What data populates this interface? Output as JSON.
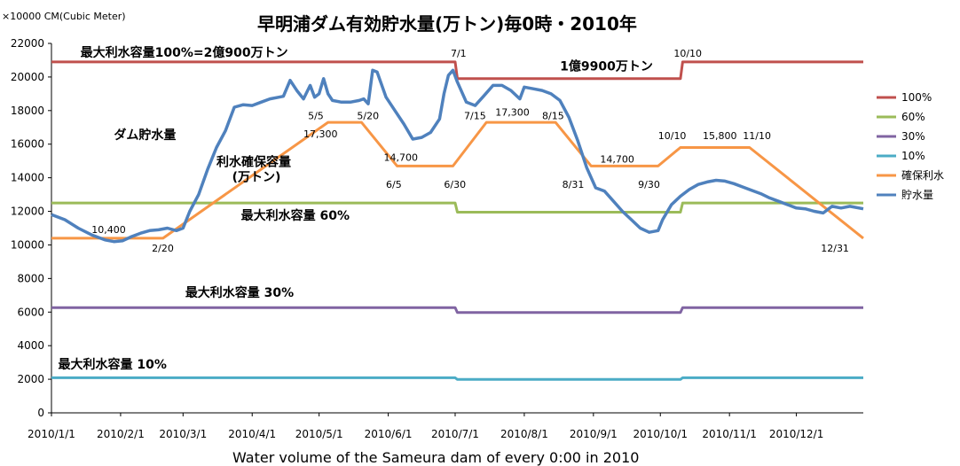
{
  "chart_data": {
    "type": "line",
    "title": "早明浦ダム有効貯水量(万トン)毎0時・2010年",
    "unit_label": "×10000 CM(Cubic Meter)",
    "xlabel": "Water volume of the Sameura dam of every 0:00 in 2010",
    "ylim": [
      0,
      22000
    ],
    "yticks": [
      "0",
      "2000",
      "4000",
      "6000",
      "8000",
      "10000",
      "12000",
      "14000",
      "16000",
      "18000",
      "20000",
      "22000"
    ],
    "xlim": [
      0,
      364
    ],
    "xticks": [
      {
        "label": "2010/1/1",
        "x": 0
      },
      {
        "label": "2010/2/1",
        "x": 31
      },
      {
        "label": "2010/3/1",
        "x": 59
      },
      {
        "label": "2010/4/1",
        "x": 90
      },
      {
        "label": "2010/5/1",
        "x": 120
      },
      {
        "label": "2010/6/1",
        "x": 151
      },
      {
        "label": "2010/7/1",
        "x": 181
      },
      {
        "label": "2010/8/1",
        "x": 212
      },
      {
        "label": "2010/9/1",
        "x": 243
      },
      {
        "label": "2010/10/1",
        "x": 273
      },
      {
        "label": "2010/11/1",
        "x": 304
      },
      {
        "label": "2010/12/1",
        "x": 334
      }
    ],
    "grid": false,
    "legend": "right",
    "series": [
      {
        "name": "100%",
        "color": "#C0504D",
        "points": [
          [
            0,
            20900
          ],
          [
            181,
            20900
          ],
          [
            182,
            19900
          ],
          [
            282,
            19900
          ],
          [
            283,
            20900
          ],
          [
            364,
            20900
          ]
        ]
      },
      {
        "name": "60%",
        "color": "#9BBB59",
        "points": [
          [
            0,
            12500
          ],
          [
            181,
            12500
          ],
          [
            182,
            11950
          ],
          [
            282,
            11950
          ],
          [
            283,
            12500
          ],
          [
            364,
            12500
          ]
        ]
      },
      {
        "name": "30%",
        "color": "#8064A2",
        "points": [
          [
            0,
            6270
          ],
          [
            181,
            6270
          ],
          [
            182,
            5970
          ],
          [
            282,
            5970
          ],
          [
            283,
            6270
          ],
          [
            364,
            6270
          ]
        ]
      },
      {
        "name": "10%",
        "color": "#4BACC6",
        "points": [
          [
            0,
            2090
          ],
          [
            181,
            2090
          ],
          [
            182,
            1990
          ],
          [
            282,
            1990
          ],
          [
            283,
            2090
          ],
          [
            364,
            2090
          ]
        ]
      },
      {
        "name": "確保利水",
        "color": "#F79646",
        "points": [
          [
            0,
            10400
          ],
          [
            50,
            10400
          ],
          [
            124,
            17300
          ],
          [
            139,
            17300
          ],
          [
            155,
            14700
          ],
          [
            180,
            14700
          ],
          [
            195,
            17300
          ],
          [
            226,
            17300
          ],
          [
            242,
            14700
          ],
          [
            272,
            14700
          ],
          [
            282,
            15800
          ],
          [
            313,
            15800
          ],
          [
            364,
            10400
          ]
        ]
      },
      {
        "name": "貯水量",
        "color": "#4F81BD",
        "points": [
          [
            0,
            11800
          ],
          [
            6,
            11500
          ],
          [
            12,
            11000
          ],
          [
            18,
            10600
          ],
          [
            24,
            10300
          ],
          [
            28,
            10200
          ],
          [
            32,
            10250
          ],
          [
            36,
            10500
          ],
          [
            40,
            10700
          ],
          [
            44,
            10850
          ],
          [
            48,
            10900
          ],
          [
            52,
            11000
          ],
          [
            56,
            10850
          ],
          [
            59,
            11000
          ],
          [
            62,
            12000
          ],
          [
            66,
            13000
          ],
          [
            70,
            14500
          ],
          [
            74,
            15800
          ],
          [
            78,
            16800
          ],
          [
            80,
            17500
          ],
          [
            82,
            18200
          ],
          [
            86,
            18350
          ],
          [
            90,
            18300
          ],
          [
            94,
            18500
          ],
          [
            98,
            18700
          ],
          [
            102,
            18800
          ],
          [
            104,
            18850
          ],
          [
            107,
            19800
          ],
          [
            110,
            19200
          ],
          [
            113,
            18700
          ],
          [
            116,
            19500
          ],
          [
            118,
            18800
          ],
          [
            120,
            19000
          ],
          [
            122,
            19900
          ],
          [
            124,
            19000
          ],
          [
            126,
            18600
          ],
          [
            130,
            18500
          ],
          [
            134,
            18500
          ],
          [
            138,
            18600
          ],
          [
            140,
            18700
          ],
          [
            142,
            18400
          ],
          [
            144,
            20400
          ],
          [
            146,
            20300
          ],
          [
            150,
            18800
          ],
          [
            154,
            18000
          ],
          [
            158,
            17200
          ],
          [
            162,
            16300
          ],
          [
            166,
            16400
          ],
          [
            170,
            16700
          ],
          [
            174,
            17500
          ],
          [
            176,
            19000
          ],
          [
            178,
            20100
          ],
          [
            180,
            20400
          ],
          [
            182,
            19700
          ],
          [
            186,
            18500
          ],
          [
            190,
            18300
          ],
          [
            194,
            18900
          ],
          [
            198,
            19500
          ],
          [
            202,
            19500
          ],
          [
            206,
            19200
          ],
          [
            210,
            18700
          ],
          [
            212,
            19400
          ],
          [
            216,
            19300
          ],
          [
            220,
            19200
          ],
          [
            224,
            19000
          ],
          [
            228,
            18600
          ],
          [
            232,
            17600
          ],
          [
            236,
            16200
          ],
          [
            240,
            14600
          ],
          [
            244,
            13400
          ],
          [
            248,
            13200
          ],
          [
            252,
            12600
          ],
          [
            256,
            12000
          ],
          [
            260,
            11500
          ],
          [
            264,
            11000
          ],
          [
            268,
            10750
          ],
          [
            272,
            10850
          ],
          [
            274,
            11500
          ],
          [
            278,
            12400
          ],
          [
            282,
            12900
          ],
          [
            286,
            13300
          ],
          [
            290,
            13600
          ],
          [
            294,
            13750
          ],
          [
            298,
            13850
          ],
          [
            302,
            13800
          ],
          [
            306,
            13650
          ],
          [
            310,
            13450
          ],
          [
            314,
            13250
          ],
          [
            318,
            13050
          ],
          [
            322,
            12800
          ],
          [
            326,
            12600
          ],
          [
            330,
            12400
          ],
          [
            334,
            12200
          ],
          [
            338,
            12150
          ],
          [
            342,
            12000
          ],
          [
            346,
            11900
          ],
          [
            350,
            12300
          ],
          [
            354,
            12200
          ],
          [
            358,
            12300
          ],
          [
            364,
            12150
          ]
        ]
      }
    ],
    "annotations": [
      {
        "text": "最大利水容量100%=2億900万トン",
        "x": 13,
        "y": 21200,
        "style": "ann"
      },
      {
        "text": "1億9900万トン",
        "x": 228,
        "y": 20400,
        "style": "ann-small"
      },
      {
        "text": "7/1",
        "x": 179,
        "y": 21200,
        "style": "small"
      },
      {
        "text": "10/10",
        "x": 279,
        "y": 21200,
        "style": "small"
      },
      {
        "text": "ダム貯水量",
        "x": 28,
        "y": 16300,
        "style": "ann"
      },
      {
        "text": "利水確保容量",
        "x": 74,
        "y": 14700,
        "style": "ann-medium"
      },
      {
        "text": "(万トン)",
        "x": 81,
        "y": 13800,
        "style": "ann-medium"
      },
      {
        "text": "10,400",
        "x": 18,
        "y": 10700,
        "style": "label"
      },
      {
        "text": "2/20",
        "x": 45,
        "y": 9600,
        "style": "small"
      },
      {
        "text": "5/5",
        "x": 115,
        "y": 17500,
        "style": "small"
      },
      {
        "text": "5/20",
        "x": 137,
        "y": 17500,
        "style": "small"
      },
      {
        "text": "17,300",
        "x": 113,
        "y": 16400,
        "style": "label"
      },
      {
        "text": "14,700",
        "x": 149,
        "y": 15000,
        "style": "label"
      },
      {
        "text": "6/5",
        "x": 150,
        "y": 13400,
        "style": "small"
      },
      {
        "text": "6/30",
        "x": 176,
        "y": 13400,
        "style": "small"
      },
      {
        "text": "7/15",
        "x": 185,
        "y": 17500,
        "style": "small"
      },
      {
        "text": "17,300",
        "x": 199,
        "y": 17700,
        "style": "label"
      },
      {
        "text": "8/15",
        "x": 220,
        "y": 17500,
        "style": "small"
      },
      {
        "text": "8/31",
        "x": 229,
        "y": 13400,
        "style": "small"
      },
      {
        "text": "14,700",
        "x": 246,
        "y": 14900,
        "style": "label"
      },
      {
        "text": "9/30",
        "x": 263,
        "y": 13400,
        "style": "small"
      },
      {
        "text": "10/10",
        "x": 272,
        "y": 16300,
        "style": "small"
      },
      {
        "text": "15,800",
        "x": 292,
        "y": 16300,
        "style": "label"
      },
      {
        "text": "11/10",
        "x": 310,
        "y": 16300,
        "style": "small"
      },
      {
        "text": "最大利水容量 60%",
        "x": 85,
        "y": 11500,
        "style": "ann"
      },
      {
        "text": "12/31",
        "x": 345,
        "y": 9600,
        "style": "small"
      },
      {
        "text": "最大利水容量 30%",
        "x": 60,
        "y": 6900,
        "style": "ann"
      },
      {
        "text": "最大利水容量 10%",
        "x": 3,
        "y": 2650,
        "style": "ann"
      }
    ]
  }
}
